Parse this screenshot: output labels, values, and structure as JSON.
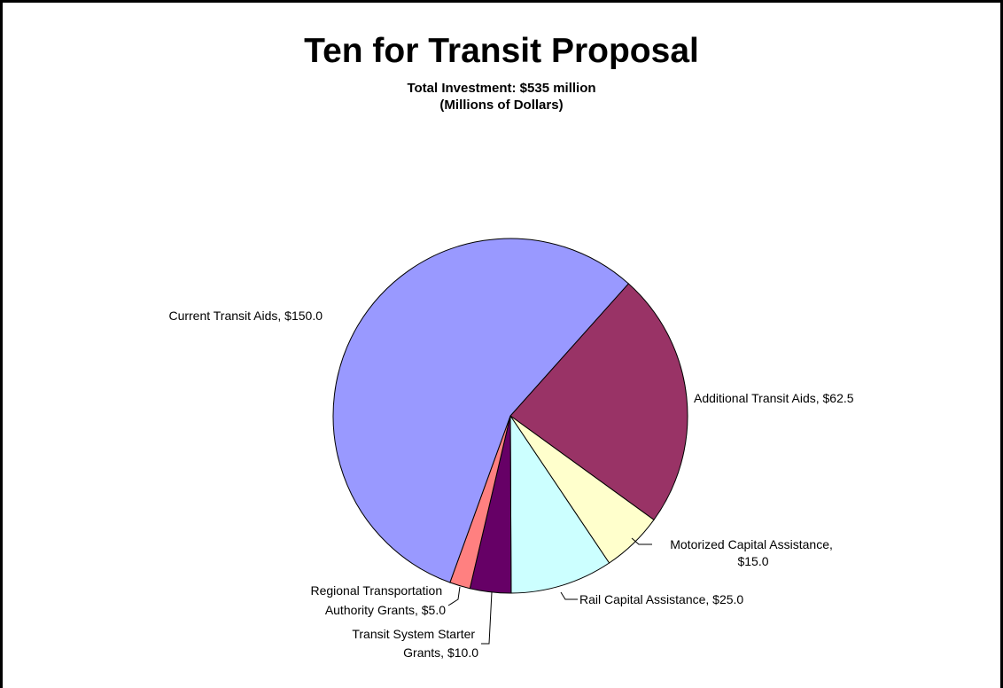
{
  "chart_data": {
    "type": "pie",
    "title": "Ten for Transit Proposal",
    "subtitle": "Total Investment: $535 million",
    "subtitle2": "(Millions of Dollars)",
    "slices": [
      {
        "label": "Current Transit Aids, $150.0",
        "value": 150.0,
        "color": "#9999ff"
      },
      {
        "label": "Additional Transit Aids, $62.5",
        "value": 62.5,
        "color": "#993366"
      },
      {
        "label": "Motorized Capital Assistance, $15.0",
        "value": 15.0,
        "color": "#ffffcc"
      },
      {
        "label": "Rail Capital Assistance, $25.0",
        "value": 25.0,
        "color": "#ccffff"
      },
      {
        "label": "Transit System Starter Grants, $10.0",
        "value": 10.0,
        "color": "#660066"
      },
      {
        "label": "Regional Transportation Authority Grants, $5.0",
        "value": 5.0,
        "color": "#ff8080"
      }
    ],
    "label_lines": {
      "current": [
        "Current Transit Aids, $150.0"
      ],
      "additional": [
        "Additional Transit Aids, $62.5"
      ],
      "motorized": [
        "Motorized Capital Assistance,",
        "$15.0"
      ],
      "rail": [
        "Rail Capital Assistance, $25.0"
      ],
      "starter": [
        "Transit System Starter",
        "Grants, $10.0"
      ],
      "regional": [
        "Regional Transportation",
        "Authority Grants, $5.0"
      ]
    }
  }
}
